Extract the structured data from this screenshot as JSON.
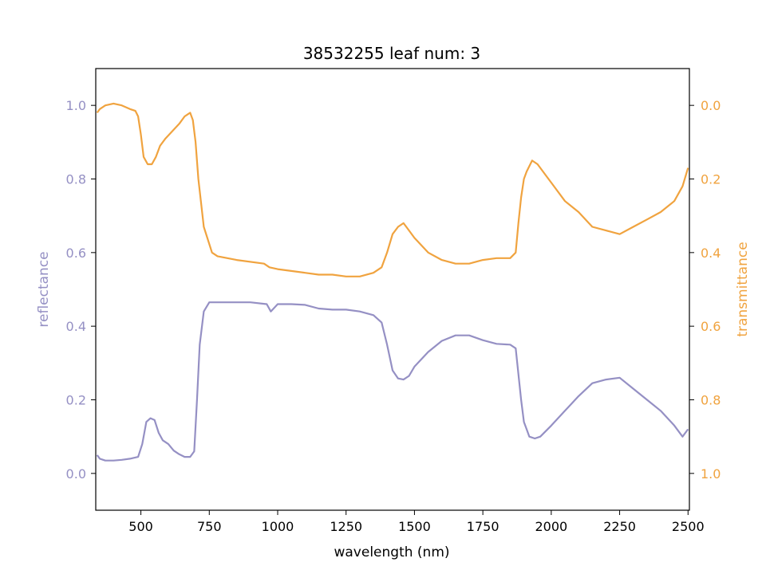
{
  "chart_data": {
    "type": "line",
    "title": "38532255 leaf num: 3",
    "xlabel": "wavelength (nm)",
    "ylabel_left": "reflectance",
    "ylabel_right": "transmittance",
    "xlim": [
      335,
      2505
    ],
    "ylim_left": [
      -0.1,
      1.1
    ],
    "ylim_right": [
      1.1,
      -0.1
    ],
    "x_ticks": [
      "500",
      "750",
      "1000",
      "1250",
      "1500",
      "1750",
      "2000",
      "2250",
      "2500"
    ],
    "y_left_ticks": [
      "0.0",
      "0.2",
      "0.4",
      "0.6",
      "0.8",
      "1.0"
    ],
    "y_right_ticks": [
      "0.0",
      "0.2",
      "0.4",
      "0.6",
      "0.8",
      "1.0"
    ],
    "grid": false,
    "colors": {
      "reflectance": "#9590c4",
      "transmittance": "#f0a33f"
    },
    "series": [
      {
        "name": "reflectance",
        "axis": "left",
        "x": [
          340,
          350,
          370,
          400,
          430,
          460,
          490,
          505,
          520,
          535,
          550,
          565,
          580,
          600,
          620,
          640,
          660,
          680,
          695,
          705,
          715,
          730,
          750,
          800,
          900,
          960,
          975,
          1000,
          1050,
          1100,
          1150,
          1200,
          1250,
          1300,
          1350,
          1380,
          1400,
          1420,
          1440,
          1460,
          1480,
          1500,
          1550,
          1600,
          1650,
          1700,
          1750,
          1800,
          1850,
          1870,
          1890,
          1900,
          1910,
          1920,
          1940,
          1960,
          2000,
          2050,
          2100,
          2150,
          2200,
          2250,
          2300,
          2350,
          2400,
          2450,
          2480,
          2500
        ],
        "y": [
          0.05,
          0.04,
          0.035,
          0.035,
          0.037,
          0.04,
          0.045,
          0.08,
          0.14,
          0.15,
          0.145,
          0.11,
          0.09,
          0.08,
          0.062,
          0.052,
          0.045,
          0.045,
          0.06,
          0.2,
          0.35,
          0.44,
          0.465,
          0.465,
          0.465,
          0.46,
          0.44,
          0.46,
          0.46,
          0.458,
          0.448,
          0.445,
          0.445,
          0.44,
          0.43,
          0.41,
          0.35,
          0.28,
          0.258,
          0.255,
          0.265,
          0.29,
          0.33,
          0.36,
          0.375,
          0.375,
          0.362,
          0.352,
          0.35,
          0.34,
          0.2,
          0.14,
          0.12,
          0.1,
          0.095,
          0.1,
          0.13,
          0.17,
          0.21,
          0.245,
          0.255,
          0.26,
          0.23,
          0.2,
          0.17,
          0.13,
          0.1,
          0.12
        ]
      },
      {
        "name": "transmittance",
        "axis": "right",
        "x": [
          340,
          350,
          370,
          400,
          430,
          460,
          480,
          490,
          500,
          510,
          525,
          540,
          555,
          570,
          590,
          615,
          640,
          660,
          670,
          680,
          690,
          700,
          710,
          730,
          760,
          780,
          850,
          950,
          970,
          1000,
          1050,
          1100,
          1150,
          1200,
          1250,
          1300,
          1350,
          1380,
          1400,
          1420,
          1440,
          1460,
          1480,
          1500,
          1550,
          1600,
          1650,
          1700,
          1750,
          1800,
          1850,
          1870,
          1880,
          1890,
          1900,
          1910,
          1930,
          1950,
          1980,
          2000,
          2050,
          2100,
          2150,
          2200,
          2250,
          2300,
          2350,
          2400,
          2450,
          2480,
          2500
        ],
        "y": [
          0.02,
          0.01,
          0.0,
          -0.005,
          0.0,
          0.01,
          0.015,
          0.03,
          0.08,
          0.14,
          0.16,
          0.16,
          0.14,
          0.11,
          0.09,
          0.07,
          0.05,
          0.03,
          0.025,
          0.02,
          0.04,
          0.1,
          0.2,
          0.33,
          0.4,
          0.41,
          0.42,
          0.43,
          0.44,
          0.445,
          0.45,
          0.455,
          0.46,
          0.46,
          0.465,
          0.465,
          0.455,
          0.44,
          0.4,
          0.35,
          0.33,
          0.32,
          0.34,
          0.36,
          0.4,
          0.42,
          0.43,
          0.43,
          0.42,
          0.415,
          0.415,
          0.4,
          0.32,
          0.25,
          0.2,
          0.18,
          0.15,
          0.16,
          0.19,
          0.21,
          0.26,
          0.29,
          0.33,
          0.34,
          0.35,
          0.33,
          0.31,
          0.29,
          0.26,
          0.22,
          0.17
        ]
      }
    ]
  }
}
